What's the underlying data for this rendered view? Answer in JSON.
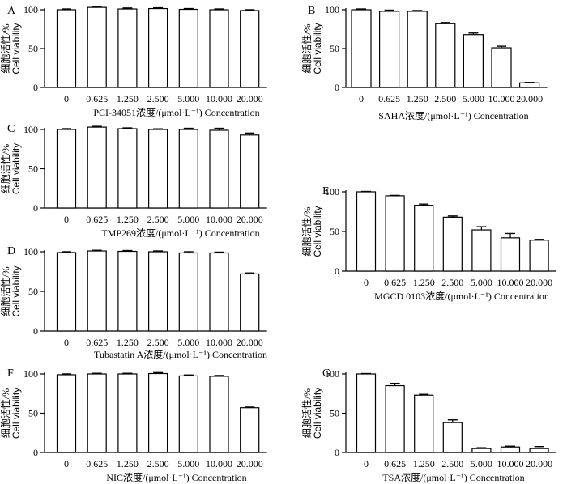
{
  "y_label_zh": "细胞活性/%",
  "y_label_en": "Cell viability",
  "x_categories": [
    "0",
    "0.625",
    "1.250",
    "2.500",
    "5.000",
    "10.000",
    "20.000"
  ],
  "chart_data": [
    {
      "type": "bar",
      "panel": "A",
      "xlabel": "PCI-34051浓度/(μmol·L⁻¹)  Concentration",
      "ylabel": "细胞活性/% Cell viability",
      "categories": [
        "0",
        "0.625",
        "1.250",
        "2.500",
        "5.000",
        "10.000",
        "20.000"
      ],
      "values": [
        100,
        103,
        101,
        101.5,
        100.5,
        100,
        99
      ],
      "errors": [
        1,
        1.2,
        1.2,
        1,
        1,
        1,
        1
      ],
      "ylim": [
        0,
        100
      ],
      "yticks": [
        0,
        50,
        100
      ]
    },
    {
      "type": "bar",
      "panel": "B",
      "xlabel": "SAHA浓度/(μmol·L⁻¹)  Concentration",
      "ylabel": "细胞活性/% Cell viability",
      "categories": [
        "0",
        "0.625",
        "1.250",
        "2.500",
        "5.000",
        "10.000",
        "20.000"
      ],
      "values": [
        100,
        98,
        98,
        82,
        68,
        51,
        6
      ],
      "errors": [
        1,
        1.5,
        1,
        1.5,
        2,
        2,
        0.5
      ],
      "ylim": [
        0,
        100
      ],
      "yticks": [
        0,
        50,
        100
      ]
    },
    {
      "type": "bar",
      "panel": "C",
      "xlabel": "TMP269浓度/(μmol·L⁻¹)  Concentration",
      "ylabel": "细胞活性/% Cell viability",
      "categories": [
        "0",
        "0.625",
        "1.250",
        "2.500",
        "5.000",
        "10.000",
        "20.000"
      ],
      "values": [
        100,
        103,
        101,
        100,
        100,
        99,
        93
      ],
      "errors": [
        1,
        1,
        1,
        0.8,
        1.5,
        2.5,
        2.5
      ],
      "ylim": [
        0,
        100
      ],
      "yticks": [
        0,
        50,
        100
      ]
    },
    {
      "type": "bar",
      "panel": "D",
      "xlabel": "Tubastatin A浓度/(μmol·L⁻¹)   Concentration",
      "ylabel": "细胞活性/% Cell viability",
      "categories": [
        "0",
        "0.625",
        "1.250",
        "2.500",
        "5.000",
        "10.000",
        "20.000"
      ],
      "values": [
        99,
        101,
        100.5,
        100,
        98.5,
        98.5,
        72
      ],
      "errors": [
        1,
        0.8,
        1,
        1,
        1.5,
        1,
        1.2
      ],
      "ylim": [
        0,
        100
      ],
      "yticks": [
        0,
        50,
        100
      ]
    },
    {
      "type": "bar",
      "panel": "E",
      "xlabel": "MGCD 0103浓度/(μmol·L⁻¹) Concentration",
      "ylabel": "细胞活性/% Cell viability",
      "categories": [
        "0",
        "0.625",
        "1.250",
        "2.500",
        "5.000",
        "10.000",
        "20.000"
      ],
      "values": [
        100,
        95,
        83,
        68,
        52,
        42,
        39
      ],
      "errors": [
        0.5,
        0.5,
        1.5,
        1.5,
        4,
        5.5,
        1
      ],
      "ylim": [
        0,
        100
      ],
      "yticks": [
        0,
        50,
        100
      ]
    },
    {
      "type": "bar",
      "panel": "F",
      "xlabel": "NIC浓度/(μmol·L⁻¹)  Concentration",
      "ylabel": "细胞活性/% Cell viability",
      "categories": [
        "0",
        "0.625",
        "1.250",
        "2.500",
        "5.000",
        "10.000",
        "20.000"
      ],
      "values": [
        99,
        100,
        100,
        100.5,
        97.5,
        97,
        57
      ],
      "errors": [
        1,
        0.8,
        0.8,
        1.2,
        1.2,
        1,
        0.8
      ],
      "ylim": [
        0,
        100
      ],
      "yticks": [
        0,
        50,
        100
      ]
    },
    {
      "type": "bar",
      "panel": "G",
      "xlabel": "TSA浓度/(μmol·L⁻¹)  Concentration",
      "ylabel": "细胞活性/% Cell viability",
      "categories": [
        "0",
        "0.625",
        "1.250",
        "2.500",
        "5.000",
        "10.000",
        "20.000"
      ],
      "values": [
        100,
        85,
        73,
        38,
        5,
        7,
        5
      ],
      "errors": [
        0.5,
        3,
        1,
        3.5,
        1,
        1,
        2.5
      ],
      "ylim": [
        0,
        100
      ],
      "yticks": [
        0,
        50,
        100
      ]
    }
  ]
}
